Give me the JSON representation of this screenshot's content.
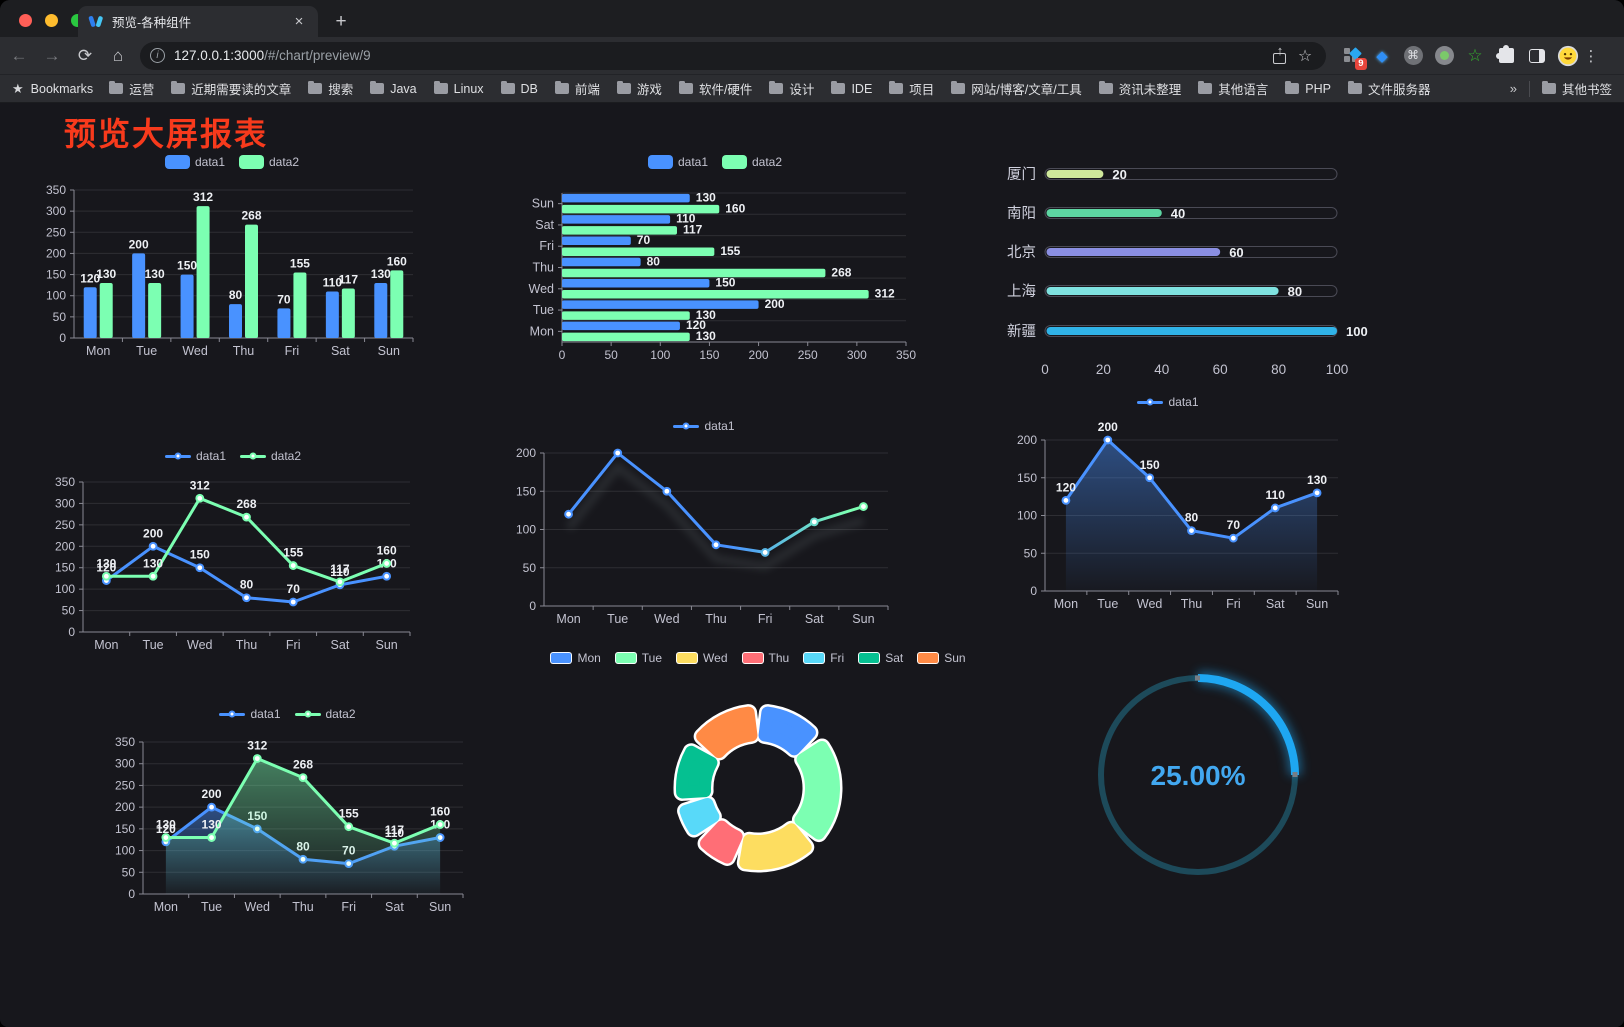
{
  "browser": {
    "tab": {
      "title": "预览-各种组件"
    },
    "address": {
      "host": "127.0.0.1:3000",
      "path": "/#/chart/preview/9"
    },
    "extensions_badge": "9",
    "bookmarks_label": "Bookmarks",
    "bookmark_folders": [
      "运营",
      "近期需要读的文章",
      "搜索",
      "Java",
      "Linux",
      "DB",
      "前端",
      "游戏",
      "软件/硬件",
      "设计",
      "IDE",
      "项目",
      "网站/博客/文章/工具",
      "资讯未整理",
      "其他语言",
      "PHP",
      "文件服务器"
    ],
    "other_bookmarks": "其他书签",
    "traffic_lights": [
      "#ff5f57",
      "#febc2e",
      "#2ac840"
    ]
  },
  "icons": {
    "back": "←",
    "forward": "→",
    "reload": "⟳",
    "home": "⌂",
    "info": "i",
    "share_arrow": "↑",
    "star": "☆",
    "close": "×",
    "new_tab": "+",
    "command": "⌘",
    "gem": "◆",
    "green_star": "☆",
    "menu": "⋮",
    "bookmarks_star": "★",
    "overflow": "»"
  },
  "page": {
    "title": "预览大屏报表",
    "title_color": "#f83a1c",
    "background": "#17171c"
  },
  "style": {
    "axis": "#8a8a94",
    "tick_label": "#c3c3d0",
    "grid": "rgba(255,255,255,0.10)",
    "value_label": "#eef0f4",
    "legend_text": "#c3c3d0"
  },
  "chart_data": [
    {
      "id": "bar",
      "type": "bar",
      "categories": [
        "Mon",
        "Tue",
        "Wed",
        "Thu",
        "Fri",
        "Sat",
        "Sun"
      ],
      "series": [
        {
          "name": "data1",
          "color": "#4992ff",
          "values": [
            120,
            200,
            150,
            80,
            70,
            110,
            130
          ]
        },
        {
          "name": "data2",
          "color": "#7cffb2",
          "values": [
            130,
            130,
            312,
            268,
            155,
            117,
            160
          ]
        }
      ],
      "ylim": [
        0,
        350
      ],
      "ystep": 50,
      "labels": true,
      "legend_position": "top",
      "grid": true
    },
    {
      "id": "hbar",
      "type": "bar-horizontal",
      "categories": [
        "Mon",
        "Tue",
        "Wed",
        "Thu",
        "Fri",
        "Sat",
        "Sun"
      ],
      "series": [
        {
          "name": "data1",
          "color": "#4992ff",
          "values": [
            120,
            200,
            150,
            80,
            70,
            110,
            130
          ]
        },
        {
          "name": "data2",
          "color": "#7cffb2",
          "values": [
            130,
            130,
            312,
            268,
            155,
            117,
            160
          ]
        }
      ],
      "xlim": [
        0,
        350
      ],
      "xstep": 50,
      "labels": true,
      "legend_position": "top"
    },
    {
      "id": "prog",
      "type": "bar-progress",
      "categories": [
        "厦门",
        "南阳",
        "北京",
        "上海",
        "新疆"
      ],
      "values": [
        20,
        40,
        60,
        80,
        100
      ],
      "bar_colors": [
        "#cfe89b",
        "#5dd5a2",
        "#8b8fe3",
        "#7fe2e0",
        "#30b3e8"
      ],
      "xlim": [
        0,
        100
      ],
      "xticks": [
        0,
        20,
        40,
        60,
        80,
        100
      ],
      "labels": true
    },
    {
      "id": "line1",
      "type": "line",
      "categories": [
        "Mon",
        "Tue",
        "Wed",
        "Thu",
        "Fri",
        "Sat",
        "Sun"
      ],
      "series": [
        {
          "name": "data1",
          "color": "#4992ff",
          "values": [
            120,
            200,
            150,
            80,
            70,
            110,
            130
          ]
        },
        {
          "name": "data2",
          "color": "#7cffb2",
          "values": [
            130,
            130,
            312,
            268,
            155,
            117,
            160
          ]
        }
      ],
      "ylim": [
        0,
        350
      ],
      "ystep": 50,
      "labels": true
    },
    {
      "id": "gline",
      "type": "line",
      "categories": [
        "Mon",
        "Tue",
        "Wed",
        "Thu",
        "Fri",
        "Sat",
        "Sun"
      ],
      "series": [
        {
          "name": "data1",
          "gradient": [
            "#4992ff",
            "#7cffb2"
          ],
          "values": [
            120,
            200,
            150,
            80,
            70,
            110,
            130
          ]
        }
      ],
      "ylim": [
        0,
        200
      ],
      "ystep": 50,
      "labels": false,
      "shadow": true
    },
    {
      "id": "area1",
      "type": "line",
      "categories": [
        "Mon",
        "Tue",
        "Wed",
        "Thu",
        "Fri",
        "Sat",
        "Sun"
      ],
      "series": [
        {
          "name": "data1",
          "color": "#4992ff",
          "area": true,
          "values": [
            120,
            200,
            150,
            80,
            70,
            110,
            130
          ]
        }
      ],
      "ylim": [
        0,
        200
      ],
      "ystep": 50,
      "labels": true
    },
    {
      "id": "area2",
      "type": "line",
      "categories": [
        "Mon",
        "Tue",
        "Wed",
        "Thu",
        "Fri",
        "Sat",
        "Sun"
      ],
      "series": [
        {
          "name": "data1",
          "color": "#4992ff",
          "area": true,
          "values": [
            120,
            200,
            150,
            80,
            70,
            110,
            130
          ]
        },
        {
          "name": "data2",
          "color": "#7cffb2",
          "area": true,
          "values": [
            130,
            130,
            312,
            268,
            155,
            117,
            160
          ]
        }
      ],
      "ylim": [
        0,
        350
      ],
      "ystep": 50,
      "labels": true
    },
    {
      "id": "pie",
      "type": "pie",
      "categories": [
        "Mon",
        "Tue",
        "Wed",
        "Thu",
        "Fri",
        "Sat",
        "Sun"
      ],
      "values": [
        120,
        200,
        150,
        80,
        70,
        110,
        130
      ],
      "colors": [
        "#4992ff",
        "#7cffb2",
        "#fddd60",
        "#ff6e76",
        "#58d9f9",
        "#05c091",
        "#ff8a45"
      ],
      "legend_position": "top"
    },
    {
      "id": "gauge",
      "type": "gauge",
      "value": 25,
      "display": "25.00%",
      "progress_color": "#1ea7f2",
      "track_color": "#1d4a5a",
      "text_color": "#42a8f0"
    }
  ]
}
